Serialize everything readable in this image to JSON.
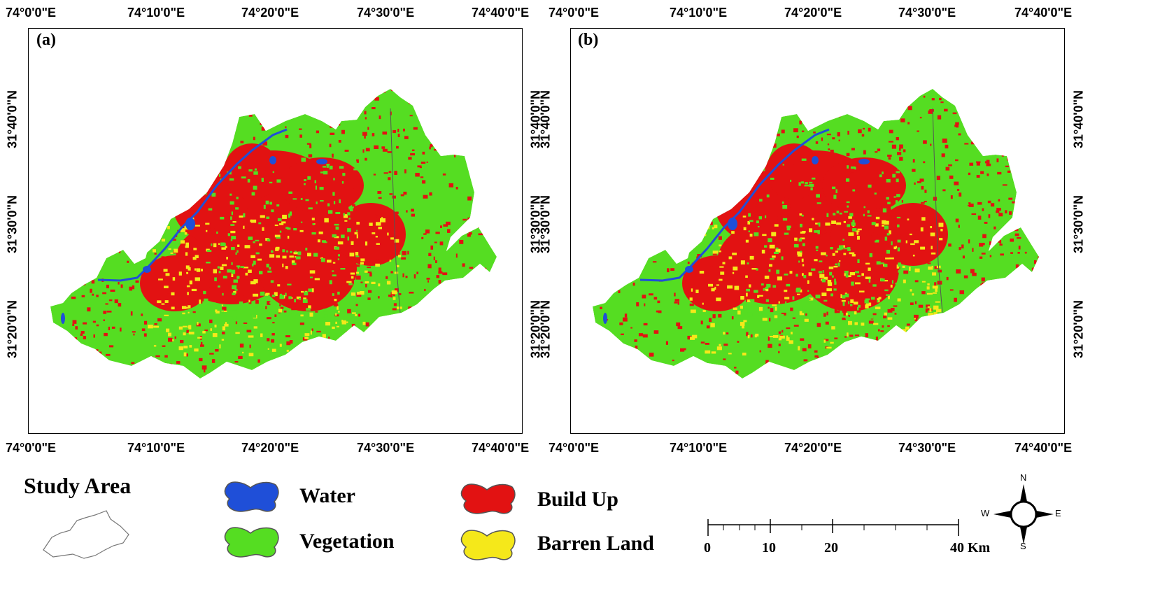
{
  "panels": [
    {
      "letter": "(a)"
    },
    {
      "letter": "(b)"
    }
  ],
  "axes": {
    "x_ticks": [
      "74°0'0\"E",
      "74°10'0\"E",
      "74°20'0\"E",
      "74°30'0\"E",
      "74°40'0\"E"
    ],
    "y_ticks": [
      "31°40'0\"N",
      "31°30'0\"N",
      "31°20'0\"N"
    ]
  },
  "legend": {
    "study_area_title": "Study Area",
    "items": [
      {
        "label": "Water",
        "color": "#1f4fd8"
      },
      {
        "label": "Vegetation",
        "color": "#55dd22"
      },
      {
        "label": "Build Up",
        "color": "#e21212"
      },
      {
        "label": "Barren Land",
        "color": "#f5e81a"
      }
    ]
  },
  "scale_bar": {
    "labels": [
      "0",
      "10",
      "20",
      "40 Km"
    ]
  },
  "compass": {
    "n": "N",
    "s": "S",
    "e": "E",
    "w": "W"
  }
}
